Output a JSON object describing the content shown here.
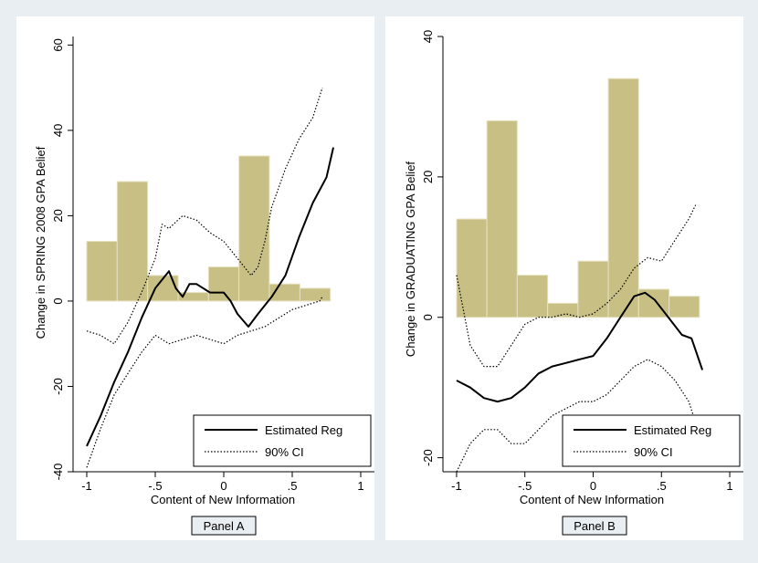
{
  "chart_data": [
    {
      "type": "line",
      "panel_label": "Panel A",
      "xlabel": "Content of New Information",
      "ylabel": "Change in SPRING 2008 GPA Belief",
      "xlim": [
        -1.1,
        1.1
      ],
      "ylim": [
        -40,
        62
      ],
      "xticks": [
        -1,
        -0.5,
        0,
        0.5,
        1
      ],
      "xtick_labels": [
        "-1",
        "-.5",
        "0",
        ".5",
        "1"
      ],
      "yticks": [
        -40,
        -20,
        0,
        20,
        40,
        60
      ],
      "ytick_labels": [
        "-40",
        "-20",
        "0",
        "20",
        "40",
        "60"
      ],
      "grid": false,
      "legend_position": "bottom-right",
      "legend": [
        {
          "label": "Estimated Reg",
          "style": "solid"
        },
        {
          "label": "90% CI",
          "style": "dotted"
        }
      ],
      "histogram": {
        "bin_edges": [
          -1.0,
          -0.778,
          -0.556,
          -0.333,
          -0.111,
          0.111,
          0.333,
          0.556,
          0.778
        ],
        "values": [
          14,
          28,
          6,
          2,
          8,
          34,
          4,
          3
        ],
        "color": "#c8bf85"
      },
      "series": [
        {
          "name": "Estimated Reg",
          "style": "solid",
          "x": [
            -1.0,
            -0.9,
            -0.8,
            -0.7,
            -0.6,
            -0.5,
            -0.4,
            -0.35,
            -0.3,
            -0.25,
            -0.2,
            -0.1,
            0.0,
            0.05,
            0.1,
            0.18,
            0.25,
            0.35,
            0.45,
            0.55,
            0.65,
            0.75,
            0.8
          ],
          "y": [
            -34,
            -27,
            -19,
            -12,
            -4,
            3,
            7,
            3,
            1,
            4,
            4,
            2,
            2,
            0,
            -3,
            -6,
            -3,
            1,
            6,
            15,
            23,
            29,
            36
          ]
        },
        {
          "name": "90% CI",
          "style": "dotted",
          "x": [
            -1.0,
            -0.9,
            -0.8,
            -0.7,
            -0.6,
            -0.5,
            -0.45,
            -0.4,
            -0.3,
            -0.2,
            -0.1,
            0.0,
            0.1,
            0.15,
            0.2,
            0.25,
            0.3,
            0.35,
            0.45,
            0.55,
            0.65,
            0.72
          ],
          "y": [
            -7,
            -8,
            -10,
            -5,
            2,
            10,
            18,
            17,
            20,
            19,
            16,
            14,
            10,
            8,
            6,
            8,
            14,
            22,
            31,
            38,
            43,
            50
          ]
        },
        {
          "name": "90% CI",
          "style": "dotted",
          "x": [
            -1.0,
            -0.9,
            -0.8,
            -0.7,
            -0.6,
            -0.5,
            -0.4,
            -0.3,
            -0.2,
            -0.1,
            0.0,
            0.1,
            0.2,
            0.3,
            0.4,
            0.5,
            0.6,
            0.7,
            0.72
          ],
          "y": [
            -39,
            -30,
            -22,
            -17,
            -12,
            -8,
            -10,
            -9,
            -8,
            -9,
            -10,
            -8,
            -7,
            -6,
            -4,
            -2,
            -1,
            0,
            1
          ]
        }
      ]
    },
    {
      "type": "line",
      "panel_label": "Panel B",
      "xlabel": "Content of New Information",
      "ylabel": "Change in GRADUATING GPA Belief",
      "xlim": [
        -1.1,
        1.1
      ],
      "ylim": [
        -22,
        40
      ],
      "xticks": [
        -1,
        -0.5,
        0,
        0.5,
        1
      ],
      "xtick_labels": [
        "-1",
        "-.5",
        "0",
        ".5",
        "1"
      ],
      "yticks": [
        -20,
        0,
        20,
        40
      ],
      "ytick_labels": [
        "-20",
        "0",
        "20",
        "40"
      ],
      "grid": false,
      "legend_position": "bottom-right",
      "legend": [
        {
          "label": "Estimated Reg",
          "style": "solid"
        },
        {
          "label": "90% CI",
          "style": "dotted"
        }
      ],
      "histogram": {
        "bin_edges": [
          -1.0,
          -0.778,
          -0.556,
          -0.333,
          -0.111,
          0.111,
          0.333,
          0.556,
          0.778
        ],
        "values": [
          14,
          28,
          6,
          2,
          8,
          34,
          4,
          3
        ],
        "color": "#c8bf85"
      },
      "series": [
        {
          "name": "Estimated Reg",
          "style": "solid",
          "x": [
            -1.0,
            -0.9,
            -0.8,
            -0.7,
            -0.6,
            -0.5,
            -0.4,
            -0.3,
            -0.2,
            -0.1,
            0.0,
            0.1,
            0.2,
            0.3,
            0.38,
            0.45,
            0.55,
            0.65,
            0.72,
            0.8
          ],
          "y": [
            -9,
            -10,
            -11.5,
            -12,
            -11.5,
            -10,
            -8,
            -7,
            -6.5,
            -6,
            -5.5,
            -3,
            0,
            3,
            3.5,
            2.5,
            0,
            -2.5,
            -3,
            -7.5
          ]
        },
        {
          "name": "90% CI",
          "style": "dotted",
          "x": [
            -1.0,
            -0.9,
            -0.8,
            -0.7,
            -0.6,
            -0.5,
            -0.4,
            -0.3,
            -0.2,
            -0.1,
            0.0,
            0.1,
            0.2,
            0.3,
            0.4,
            0.5,
            0.6,
            0.7,
            0.75
          ],
          "y": [
            6,
            -4,
            -7,
            -7,
            -4,
            -1,
            0,
            0,
            0.5,
            0,
            0.5,
            2,
            4,
            7,
            8.5,
            8,
            11,
            14,
            16
          ]
        },
        {
          "name": "90% CI",
          "style": "dotted",
          "x": [
            -1.0,
            -0.9,
            -0.8,
            -0.7,
            -0.6,
            -0.5,
            -0.4,
            -0.3,
            -0.2,
            -0.1,
            0.0,
            0.1,
            0.2,
            0.3,
            0.4,
            0.5,
            0.6,
            0.7,
            0.75
          ],
          "y": [
            -22,
            -18,
            -16,
            -16,
            -18,
            -18,
            -16,
            -14,
            -13,
            -12,
            -12,
            -11,
            -9,
            -7,
            -6,
            -7,
            -9,
            -12,
            -15
          ]
        }
      ]
    }
  ]
}
